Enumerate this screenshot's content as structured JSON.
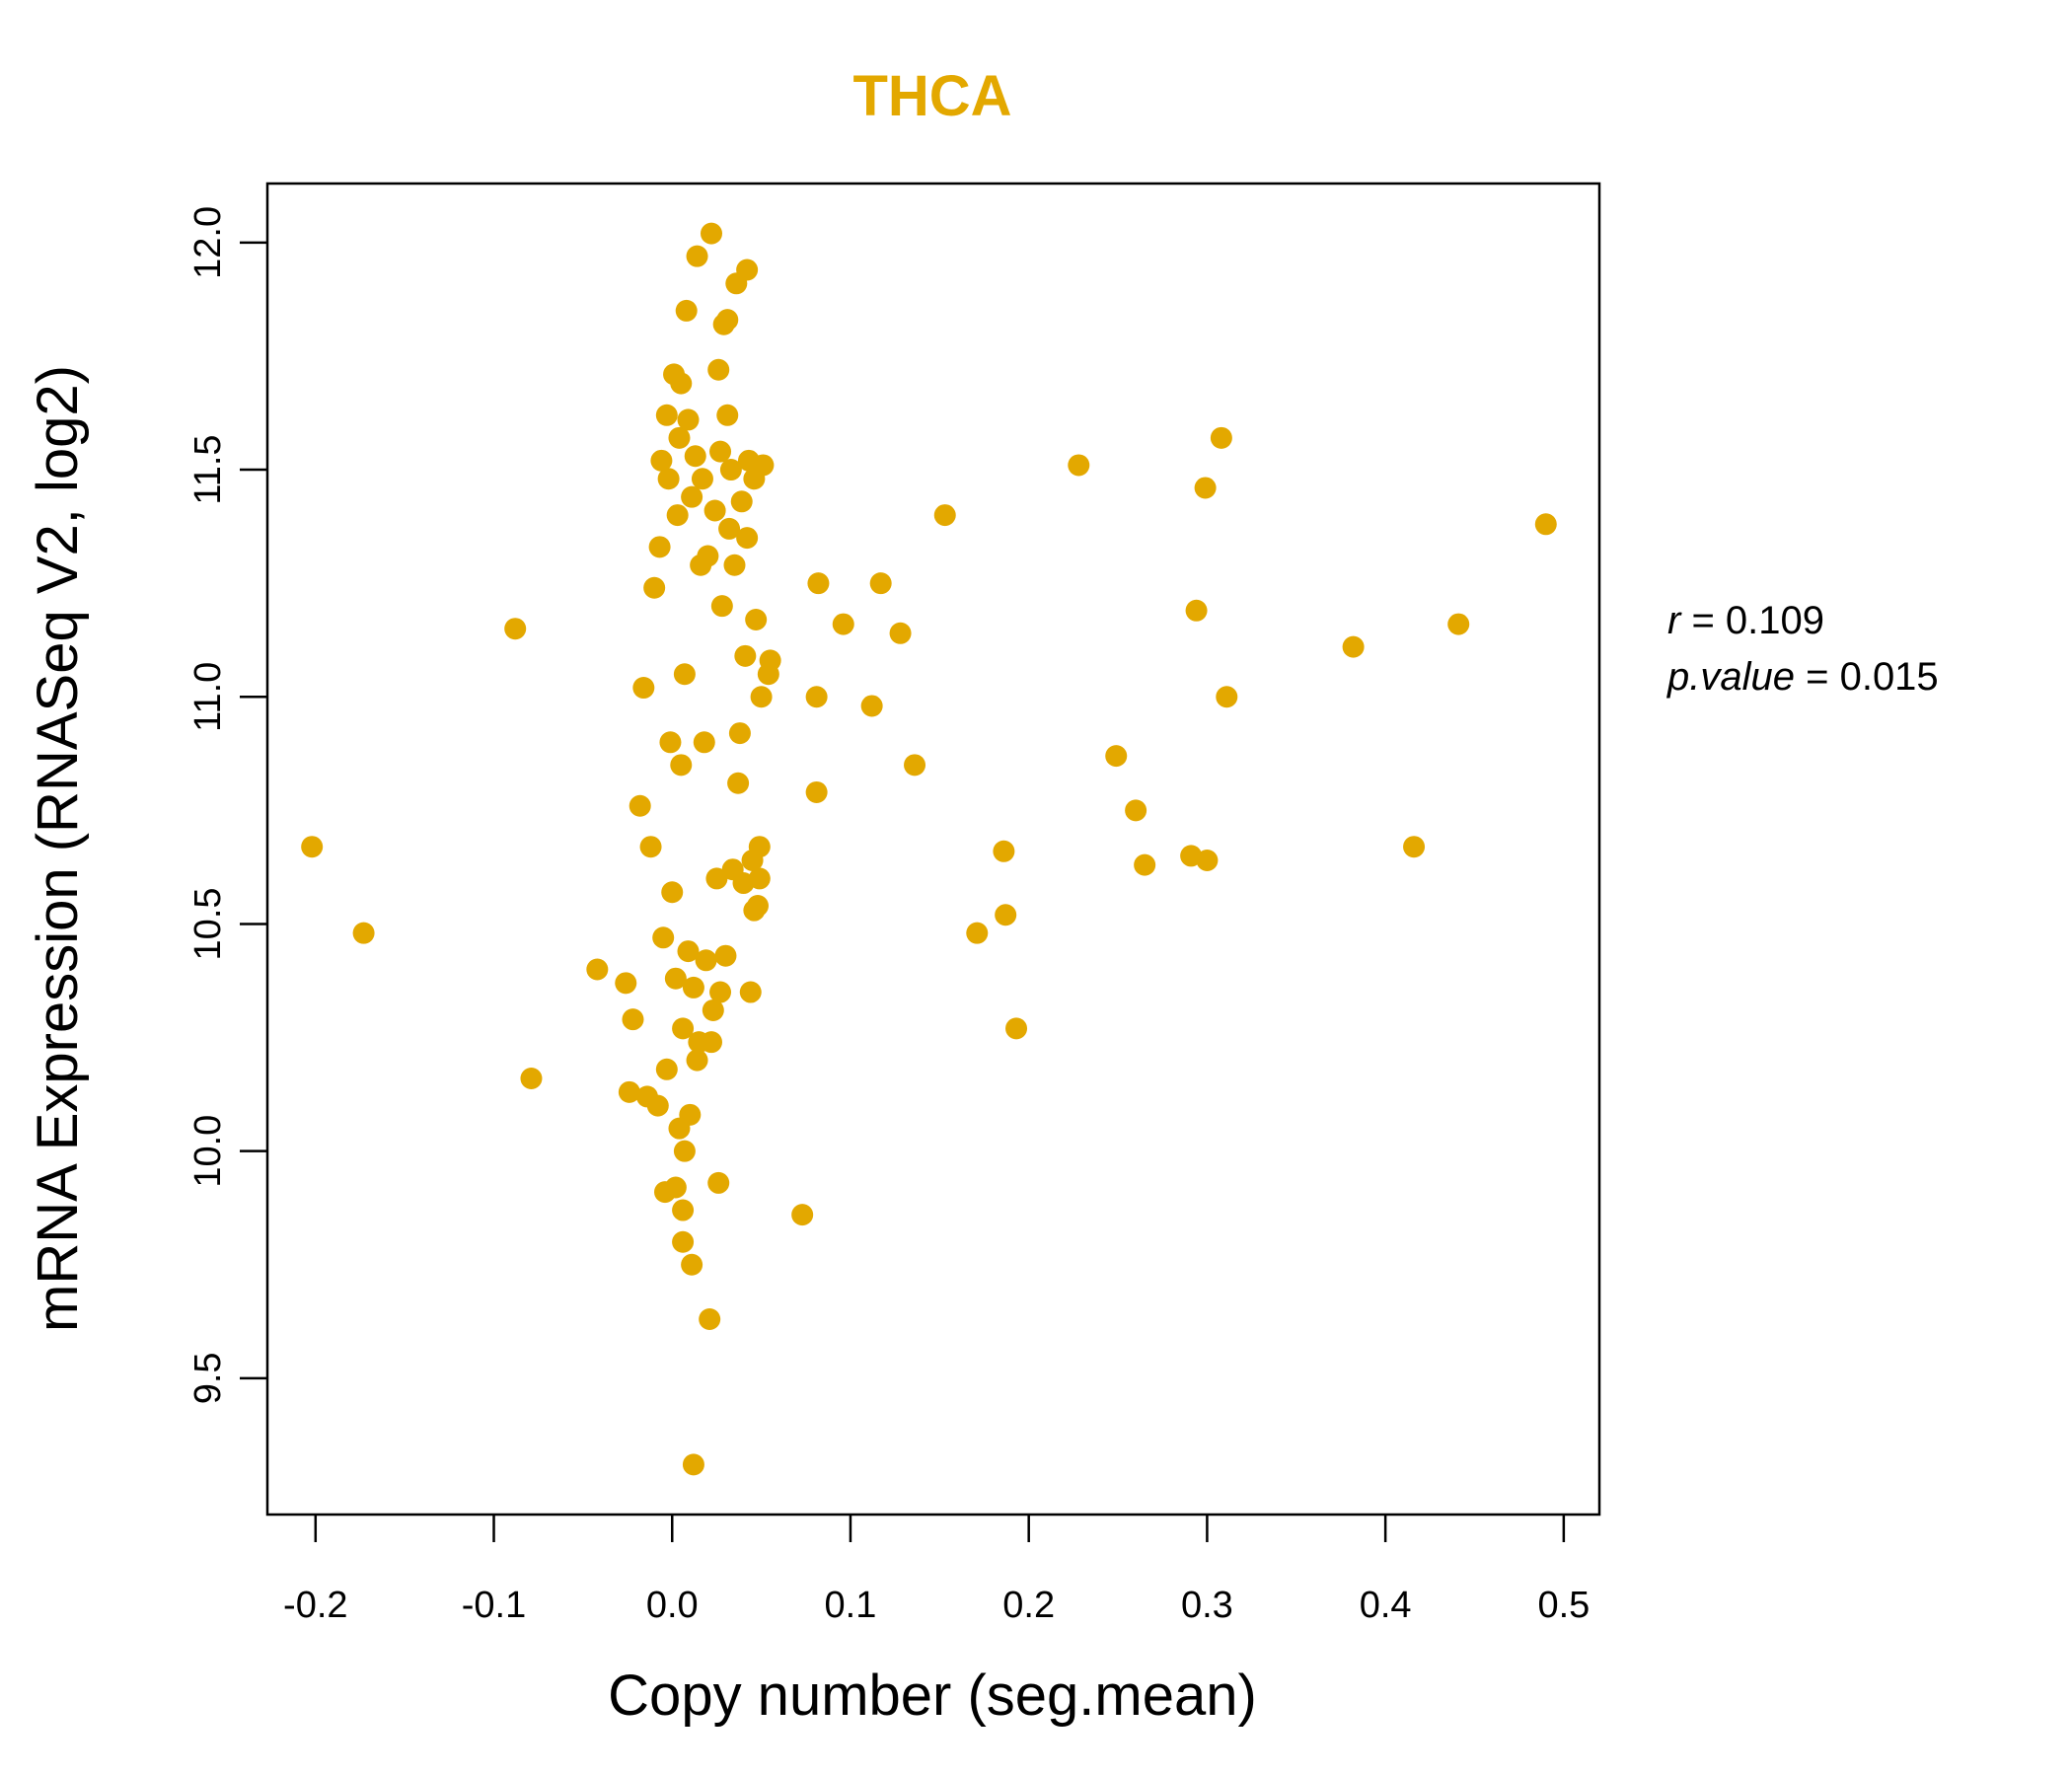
{
  "chart_data": {
    "type": "scatter",
    "title": "THCA",
    "xlabel": "Copy number (seg.mean)",
    "ylabel": "mRNA Expression (RNASeq V2, log2)",
    "xlim": [
      -0.227,
      0.52
    ],
    "ylim": [
      9.2,
      12.13
    ],
    "xticks": [
      -0.2,
      -0.1,
      0.0,
      0.1,
      0.2,
      0.3,
      0.4,
      0.5
    ],
    "xtick_labels": [
      "-0.2",
      "-0.1",
      "0.0",
      "0.1",
      "0.2",
      "0.3",
      "0.4",
      "0.5"
    ],
    "yticks": [
      9.5,
      10.0,
      10.5,
      11.0,
      11.5,
      12.0
    ],
    "ytick_labels": [
      "9.5",
      "10.0",
      "10.5",
      "11.0",
      "11.5",
      "12.0"
    ],
    "color": "#E3A800",
    "stats": {
      "r_label": "r",
      "r_value": "0.109",
      "p_label": "p.value",
      "p_value": "0.015"
    },
    "points": [
      [
        -0.202,
        10.67
      ],
      [
        -0.173,
        10.48
      ],
      [
        -0.088,
        11.15
      ],
      [
        -0.079,
        10.16
      ],
      [
        -0.042,
        10.4
      ],
      [
        -0.026,
        10.37
      ],
      [
        -0.024,
        10.13
      ],
      [
        -0.022,
        10.29
      ],
      [
        -0.018,
        10.76
      ],
      [
        -0.016,
        11.02
      ],
      [
        -0.014,
        10.12
      ],
      [
        -0.012,
        10.67
      ],
      [
        -0.01,
        11.24
      ],
      [
        -0.008,
        10.1
      ],
      [
        -0.007,
        11.33
      ],
      [
        -0.006,
        11.52
      ],
      [
        -0.005,
        10.47
      ],
      [
        -0.004,
        9.91
      ],
      [
        -0.003,
        11.62
      ],
      [
        -0.003,
        10.18
      ],
      [
        -0.002,
        11.48
      ],
      [
        -0.001,
        10.9
      ],
      [
        0.0,
        10.57
      ],
      [
        0.001,
        11.71
      ],
      [
        0.002,
        10.38
      ],
      [
        0.002,
        9.92
      ],
      [
        0.003,
        11.4
      ],
      [
        0.004,
        10.05
      ],
      [
        0.004,
        11.57
      ],
      [
        0.005,
        11.69
      ],
      [
        0.005,
        10.85
      ],
      [
        0.006,
        9.87
      ],
      [
        0.006,
        10.27
      ],
      [
        0.006,
        9.8
      ],
      [
        0.007,
        11.05
      ],
      [
        0.007,
        10.0
      ],
      [
        0.008,
        11.85
      ],
      [
        0.009,
        11.61
      ],
      [
        0.009,
        10.44
      ],
      [
        0.01,
        10.08
      ],
      [
        0.011,
        11.44
      ],
      [
        0.011,
        9.75
      ],
      [
        0.012,
        9.31
      ],
      [
        0.012,
        10.36
      ],
      [
        0.013,
        11.53
      ],
      [
        0.014,
        10.2
      ],
      [
        0.014,
        11.97
      ],
      [
        0.015,
        10.24
      ],
      [
        0.016,
        11.29
      ],
      [
        0.017,
        11.48
      ],
      [
        0.018,
        10.9
      ],
      [
        0.019,
        10.42
      ],
      [
        0.02,
        11.31
      ],
      [
        0.021,
        9.63
      ],
      [
        0.022,
        12.02
      ],
      [
        0.022,
        10.24
      ],
      [
        0.023,
        10.31
      ],
      [
        0.024,
        11.41
      ],
      [
        0.025,
        10.6
      ],
      [
        0.026,
        9.93
      ],
      [
        0.026,
        11.72
      ],
      [
        0.027,
        11.54
      ],
      [
        0.027,
        10.35
      ],
      [
        0.028,
        11.2
      ],
      [
        0.029,
        11.82
      ],
      [
        0.03,
        10.43
      ],
      [
        0.031,
        11.83
      ],
      [
        0.031,
        11.62
      ],
      [
        0.032,
        11.37
      ],
      [
        0.033,
        11.5
      ],
      [
        0.034,
        10.62
      ],
      [
        0.035,
        11.29
      ],
      [
        0.036,
        11.91
      ],
      [
        0.037,
        10.81
      ],
      [
        0.038,
        10.92
      ],
      [
        0.039,
        11.43
      ],
      [
        0.04,
        10.59
      ],
      [
        0.041,
        11.09
      ],
      [
        0.042,
        11.35
      ],
      [
        0.042,
        11.94
      ],
      [
        0.043,
        11.52
      ],
      [
        0.044,
        10.35
      ],
      [
        0.045,
        10.64
      ],
      [
        0.046,
        11.48
      ],
      [
        0.046,
        10.53
      ],
      [
        0.047,
        11.17
      ],
      [
        0.048,
        10.54
      ],
      [
        0.049,
        10.6
      ],
      [
        0.049,
        10.67
      ],
      [
        0.05,
        11.0
      ],
      [
        0.051,
        11.51
      ],
      [
        0.054,
        11.05
      ],
      [
        0.055,
        11.08
      ],
      [
        0.073,
        9.86
      ],
      [
        0.081,
        10.79
      ],
      [
        0.081,
        11.0
      ],
      [
        0.082,
        11.25
      ],
      [
        0.096,
        11.16
      ],
      [
        0.112,
        10.98
      ],
      [
        0.117,
        11.25
      ],
      [
        0.128,
        11.14
      ],
      [
        0.136,
        10.85
      ],
      [
        0.153,
        11.4
      ],
      [
        0.171,
        10.48
      ],
      [
        0.186,
        10.66
      ],
      [
        0.187,
        10.52
      ],
      [
        0.193,
        10.27
      ],
      [
        0.228,
        11.51
      ],
      [
        0.249,
        10.87
      ],
      [
        0.26,
        10.75
      ],
      [
        0.265,
        10.63
      ],
      [
        0.291,
        10.65
      ],
      [
        0.294,
        11.19
      ],
      [
        0.299,
        11.46
      ],
      [
        0.3,
        10.64
      ],
      [
        0.308,
        11.57
      ],
      [
        0.311,
        11.0
      ],
      [
        0.382,
        11.11
      ],
      [
        0.416,
        10.67
      ],
      [
        0.441,
        11.16
      ],
      [
        0.49,
        11.38
      ]
    ]
  }
}
